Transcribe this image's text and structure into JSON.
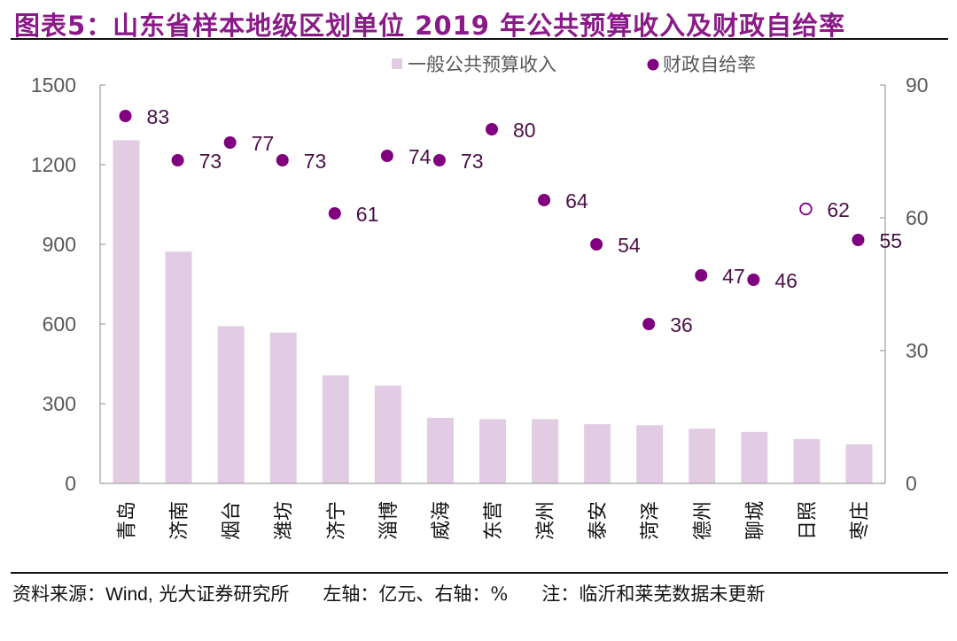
{
  "header": {
    "title": "图表5：山东省样本地级区划单位 2019 年公共预算收入及财政自给率"
  },
  "footer": {
    "source": "资料来源：",
    "source_latin": "Wind,",
    "source_rest": " 光大证券研究所",
    "axis_note": "左轴：亿元、右轴：%",
    "note": "注：临沂和莱芜数据未更新"
  },
  "colors": {
    "title": "#8B1A89",
    "bar": "#E2CCE3",
    "dot": "#800080",
    "dot_label": "#4B1048",
    "axis": "#A6A6A6",
    "tick_text": "#595959"
  },
  "chart_data": {
    "type": "bar+scatter",
    "title": "山东省样本地级区划单位 2019 年公共预算收入及财政自给率",
    "categories": [
      "青岛",
      "济南",
      "烟台",
      "潍坊",
      "济宁",
      "淄博",
      "威海",
      "东营",
      "滨州",
      "泰安",
      "菏泽",
      "德州",
      "聊城",
      "日照",
      "枣庄"
    ],
    "series": [
      {
        "name": "一般公共预算收入",
        "type": "bar",
        "axis": "left",
        "values": [
          1292,
          873,
          592,
          568,
          407,
          368,
          247,
          242,
          242,
          223,
          219,
          206,
          194,
          167,
          147
        ]
      },
      {
        "name": "财政自给率",
        "type": "scatter",
        "axis": "right",
        "values": [
          83,
          73,
          77,
          73,
          61,
          74,
          73,
          80,
          64,
          54,
          36,
          47,
          46,
          62,
          55
        ],
        "hollow": [
          false,
          false,
          false,
          false,
          false,
          false,
          false,
          false,
          false,
          false,
          false,
          false,
          false,
          true,
          false
        ]
      }
    ],
    "left_axis": {
      "ticks": [
        0,
        300,
        600,
        900,
        1200,
        1500
      ],
      "ylim": [
        0,
        1500
      ],
      "unit": "亿元"
    },
    "right_axis": {
      "ticks": [
        0,
        30,
        60,
        90
      ],
      "ylim": [
        0,
        90
      ],
      "unit": "%"
    },
    "legend": {
      "position": "top-center",
      "items": [
        "一般公共预算收入",
        "财政自给率"
      ]
    },
    "grid": false
  }
}
